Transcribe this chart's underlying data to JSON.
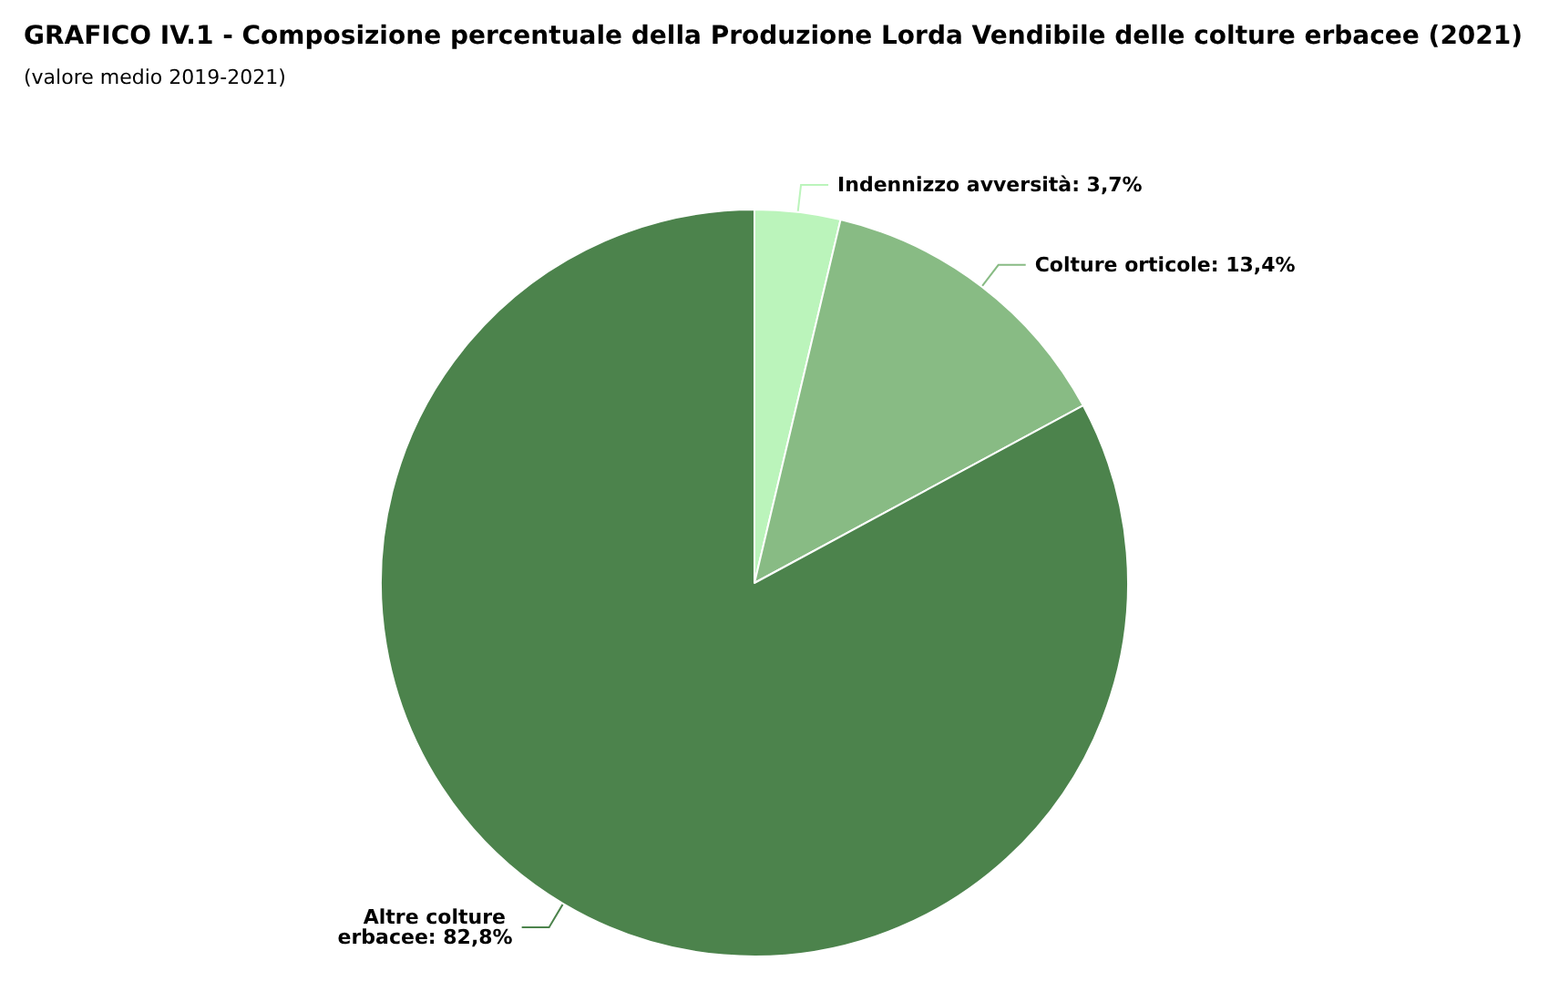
{
  "chart_data": {
    "type": "pie",
    "title": "GRAFICO IV.1 - Composizione percentuale della Produzione Lorda Vendibile delle colture erbacee (2021)",
    "subtitle": "(valore medio 2019-2021)",
    "categories": [
      "Indennizzo avversità",
      "Colture orticole",
      "Altre colture erbacee"
    ],
    "values": [
      3.7,
      13.4,
      82.8
    ],
    "value_labels": [
      "3,7%",
      "13,4%",
      "82,8%"
    ],
    "colors": [
      "#bbf4bb",
      "#88bb84",
      "#4c834c"
    ],
    "legend": false
  }
}
